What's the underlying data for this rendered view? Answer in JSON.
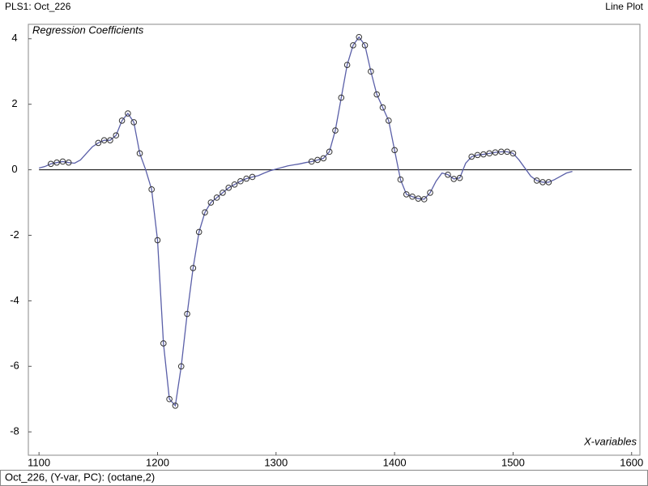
{
  "header": {
    "left": "PLS1: Oct_226",
    "right": "Line Plot"
  },
  "status": "Oct_226, (Y-var, PC): (octane,2)",
  "chart_data": {
    "type": "line",
    "title": "Regression Coefficients",
    "x_label": "X-variables",
    "xlim": [
      1091,
      1607
    ],
    "xticks": [
      1100,
      1200,
      1300,
      1400,
      1500,
      1600
    ],
    "ylim": [
      -8.54,
      4.44
    ],
    "yticks": [
      -8,
      -6,
      -4,
      -2,
      0,
      2,
      4
    ],
    "grid": false,
    "x": [
      1100,
      1105,
      1110,
      1115,
      1120,
      1125,
      1130,
      1135,
      1140,
      1145,
      1150,
      1155,
      1160,
      1165,
      1170,
      1175,
      1180,
      1185,
      1190,
      1195,
      1200,
      1205,
      1210,
      1215,
      1220,
      1225,
      1230,
      1235,
      1240,
      1245,
      1250,
      1255,
      1260,
      1265,
      1270,
      1275,
      1280,
      1285,
      1290,
      1295,
      1300,
      1305,
      1310,
      1315,
      1320,
      1325,
      1330,
      1335,
      1340,
      1345,
      1350,
      1355,
      1360,
      1365,
      1370,
      1375,
      1380,
      1385,
      1390,
      1395,
      1400,
      1405,
      1410,
      1415,
      1420,
      1425,
      1430,
      1435,
      1440,
      1445,
      1450,
      1455,
      1460,
      1465,
      1470,
      1475,
      1480,
      1485,
      1490,
      1495,
      1500,
      1505,
      1510,
      1515,
      1520,
      1525,
      1530,
      1535,
      1540,
      1545,
      1550
    ],
    "series": [
      {
        "color": "#5a5fa8",
        "marker_color": "#333333",
        "values": [
          0.05,
          0.1,
          0.18,
          0.22,
          0.25,
          0.22,
          0.2,
          0.3,
          0.5,
          0.7,
          0.82,
          0.9,
          0.9,
          1.05,
          1.5,
          1.72,
          1.45,
          0.5,
          0.0,
          -0.6,
          -2.15,
          -5.3,
          -7.0,
          -7.2,
          -6.0,
          -4.4,
          -3.0,
          -1.9,
          -1.3,
          -1.0,
          -0.85,
          -0.7,
          -0.55,
          -0.45,
          -0.35,
          -0.27,
          -0.22,
          -0.18,
          -0.1,
          -0.03,
          0.02,
          0.07,
          0.12,
          0.15,
          0.18,
          0.22,
          0.25,
          0.3,
          0.35,
          0.55,
          1.2,
          2.2,
          3.2,
          3.8,
          4.05,
          3.8,
          3.0,
          2.3,
          1.9,
          1.5,
          0.6,
          -0.3,
          -0.75,
          -0.82,
          -0.88,
          -0.9,
          -0.7,
          -0.35,
          -0.1,
          -0.15,
          -0.28,
          -0.25,
          0.2,
          0.4,
          0.45,
          0.47,
          0.5,
          0.53,
          0.55,
          0.55,
          0.5,
          0.3,
          0.05,
          -0.2,
          -0.33,
          -0.38,
          -0.38,
          -0.3,
          -0.2,
          -0.1,
          -0.05
        ],
        "marked": [
          false,
          false,
          true,
          true,
          true,
          true,
          false,
          false,
          false,
          false,
          true,
          true,
          true,
          true,
          true,
          true,
          true,
          true,
          false,
          true,
          true,
          true,
          true,
          true,
          true,
          true,
          true,
          true,
          true,
          true,
          true,
          true,
          true,
          true,
          true,
          true,
          true,
          false,
          false,
          false,
          false,
          false,
          false,
          false,
          false,
          false,
          true,
          true,
          true,
          true,
          true,
          true,
          true,
          true,
          true,
          true,
          true,
          true,
          true,
          true,
          true,
          true,
          true,
          true,
          true,
          true,
          true,
          false,
          false,
          true,
          true,
          true,
          false,
          true,
          true,
          true,
          true,
          true,
          true,
          true,
          true,
          false,
          false,
          false,
          true,
          true,
          true,
          false,
          false,
          false,
          false
        ]
      }
    ]
  }
}
